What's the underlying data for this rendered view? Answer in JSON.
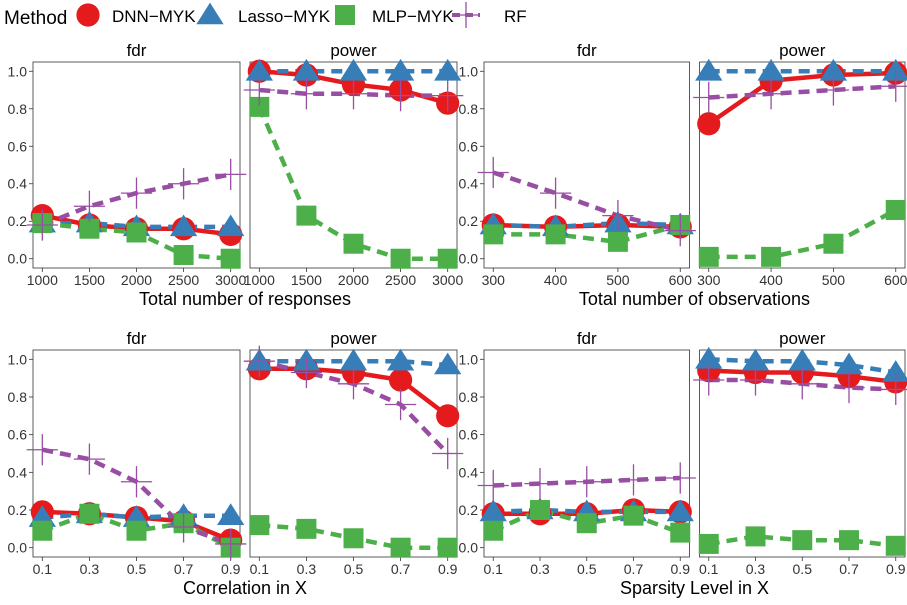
{
  "legend": {
    "title": "Method",
    "items": [
      {
        "label": "DNN−MYK",
        "color": "#e41a1c",
        "shape": "circle"
      },
      {
        "label": "Lasso−MYK",
        "color": "#377eb8",
        "shape": "triangle"
      },
      {
        "label": "MLP−MYK",
        "color": "#4daf4a",
        "shape": "square"
      },
      {
        "label": "RF",
        "color": "#984ea3",
        "shape": "plus"
      }
    ]
  },
  "y_ticks": [
    "0.0",
    "0.2",
    "0.4",
    "0.6",
    "0.8",
    "1.0"
  ],
  "chart_data": [
    {
      "type": "line",
      "xlabel": "Total number of responses",
      "x": [
        1000,
        1500,
        2000,
        2500,
        3000
      ],
      "x_ticks": [
        "1000",
        "1500",
        "2000",
        "2500",
        "3000"
      ],
      "ylim": [
        0,
        1
      ],
      "panels": [
        {
          "title": "fdr",
          "series": [
            {
              "name": "DNN−MYK",
              "values": [
                0.23,
                0.18,
                0.16,
                0.16,
                0.13
              ]
            },
            {
              "name": "Lasso−MYK",
              "values": [
                0.19,
                0.19,
                0.17,
                0.17,
                0.17
              ]
            },
            {
              "name": "MLP−MYK",
              "values": [
                0.19,
                0.16,
                0.14,
                0.02,
                0.0
              ]
            },
            {
              "name": "RF",
              "values": [
                0.18,
                0.28,
                0.35,
                0.4,
                0.45
              ]
            }
          ]
        },
        {
          "title": "power",
          "series": [
            {
              "name": "DNN−MYK",
              "values": [
                1.0,
                0.98,
                0.93,
                0.9,
                0.83
              ]
            },
            {
              "name": "Lasso−MYK",
              "values": [
                1.0,
                1.0,
                1.0,
                1.0,
                1.0
              ]
            },
            {
              "name": "MLP−MYK",
              "values": [
                0.81,
                0.23,
                0.08,
                0.0,
                0.0
              ]
            },
            {
              "name": "RF",
              "values": [
                0.9,
                0.88,
                0.88,
                0.87,
                0.87
              ]
            }
          ]
        }
      ]
    },
    {
      "type": "line",
      "xlabel": "Total number of observations",
      "x": [
        300,
        400,
        500,
        600
      ],
      "x_ticks": [
        "300",
        "400",
        "500",
        "600"
      ],
      "ylim": [
        0,
        1
      ],
      "panels": [
        {
          "title": "fdr",
          "series": [
            {
              "name": "DNN−MYK",
              "values": [
                0.18,
                0.17,
                0.18,
                0.17
              ]
            },
            {
              "name": "Lasso−MYK",
              "values": [
                0.18,
                0.17,
                0.19,
                0.18
              ]
            },
            {
              "name": "MLP−MYK",
              "values": [
                0.13,
                0.13,
                0.09,
                0.18
              ]
            },
            {
              "name": "RF",
              "values": [
                0.46,
                0.35,
                0.23,
                0.15
              ]
            }
          ]
        },
        {
          "title": "power",
          "series": [
            {
              "name": "DNN−MYK",
              "values": [
                0.72,
                0.95,
                0.98,
                0.99
              ]
            },
            {
              "name": "Lasso−MYK",
              "values": [
                1.0,
                1.0,
                1.0,
                1.0
              ]
            },
            {
              "name": "MLP−MYK",
              "values": [
                0.01,
                0.01,
                0.08,
                0.26
              ]
            },
            {
              "name": "RF",
              "values": [
                0.86,
                0.88,
                0.9,
                0.92
              ]
            }
          ]
        }
      ]
    },
    {
      "type": "line",
      "xlabel": "Correlation in X",
      "x": [
        0.1,
        0.3,
        0.5,
        0.7,
        0.9
      ],
      "x_ticks": [
        "0.1",
        "0.3",
        "0.5",
        "0.7",
        "0.9"
      ],
      "ylim": [
        0,
        1
      ],
      "panels": [
        {
          "title": "fdr",
          "series": [
            {
              "name": "DNN−MYK",
              "values": [
                0.19,
                0.18,
                0.16,
                0.14,
                0.04
              ]
            },
            {
              "name": "Lasso−MYK",
              "values": [
                0.16,
                0.18,
                0.16,
                0.17,
                0.17
              ]
            },
            {
              "name": "MLP−MYK",
              "values": [
                0.09,
                0.18,
                0.09,
                0.13,
                0.0
              ]
            },
            {
              "name": "RF",
              "values": [
                0.52,
                0.47,
                0.35,
                0.11,
                0.02
              ]
            }
          ]
        },
        {
          "title": "power",
          "series": [
            {
              "name": "DNN−MYK",
              "values": [
                0.95,
                0.95,
                0.93,
                0.89,
                0.7
              ]
            },
            {
              "name": "Lasso−MYK",
              "values": [
                0.99,
                0.99,
                0.99,
                0.99,
                0.97
              ]
            },
            {
              "name": "MLP−MYK",
              "values": [
                0.12,
                0.1,
                0.05,
                0.0,
                0.0
              ]
            },
            {
              "name": "RF",
              "values": [
                0.99,
                0.93,
                0.87,
                0.76,
                0.5
              ]
            }
          ]
        }
      ]
    },
    {
      "type": "line",
      "xlabel": "Sparsity Level in X",
      "x": [
        0.1,
        0.3,
        0.5,
        0.7,
        0.9
      ],
      "x_ticks": [
        "0.1",
        "0.3",
        "0.5",
        "0.7",
        "0.9"
      ],
      "ylim": [
        0,
        1
      ],
      "panels": [
        {
          "title": "fdr",
          "series": [
            {
              "name": "DNN−MYK",
              "values": [
                0.18,
                0.18,
                0.18,
                0.2,
                0.19
              ]
            },
            {
              "name": "Lasso−MYK",
              "values": [
                0.19,
                0.2,
                0.19,
                0.19,
                0.19
              ]
            },
            {
              "name": "MLP−MYK",
              "values": [
                0.09,
                0.2,
                0.13,
                0.17,
                0.08
              ]
            },
            {
              "name": "RF",
              "values": [
                0.33,
                0.34,
                0.35,
                0.36,
                0.37
              ]
            }
          ]
        },
        {
          "title": "power",
          "series": [
            {
              "name": "DNN−MYK",
              "values": [
                0.94,
                0.93,
                0.93,
                0.91,
                0.88
              ]
            },
            {
              "name": "Lasso−MYK",
              "values": [
                1.0,
                0.99,
                0.99,
                0.97,
                0.93
              ]
            },
            {
              "name": "MLP−MYK",
              "values": [
                0.02,
                0.06,
                0.04,
                0.04,
                0.01
              ]
            },
            {
              "name": "RF",
              "values": [
                0.89,
                0.89,
                0.87,
                0.85,
                0.84
              ]
            }
          ]
        }
      ]
    }
  ]
}
